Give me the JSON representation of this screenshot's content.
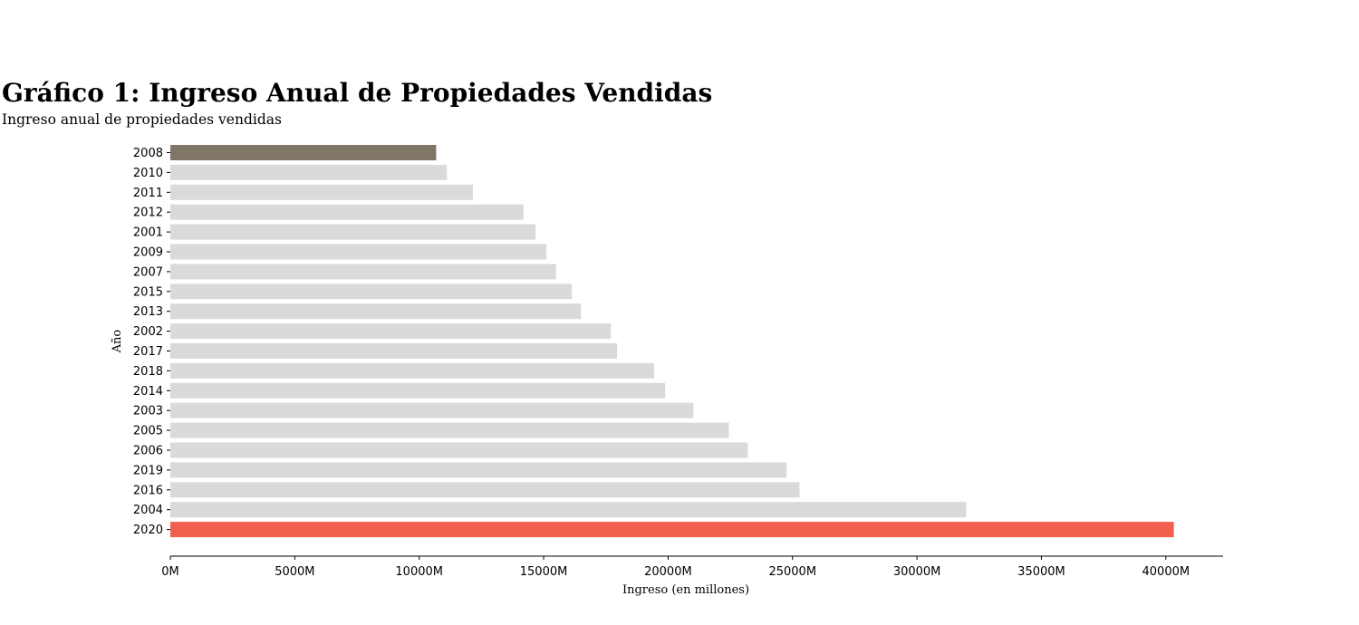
{
  "title": "Gráfico 1: Ingreso Anual de Propiedades Vendidas",
  "subtitle": "Ingreso anual de propiedades vendidas",
  "chart_data": {
    "type": "bar",
    "orientation": "horizontal",
    "xlabel": "Ingreso (en millones)",
    "ylabel": "Año",
    "xlim": [
      0,
      42300
    ],
    "xticks": [
      0,
      5000,
      10000,
      15000,
      20000,
      25000,
      30000,
      35000,
      40000
    ],
    "xtick_labels": [
      "0M",
      "5000M",
      "10000M",
      "15000M",
      "20000M",
      "25000M",
      "30000M",
      "35000M",
      "40000M"
    ],
    "categories": [
      "2008",
      "2010",
      "2011",
      "2012",
      "2001",
      "2009",
      "2007",
      "2015",
      "2013",
      "2002",
      "2017",
      "2018",
      "2014",
      "2003",
      "2005",
      "2006",
      "2019",
      "2016",
      "2004",
      "2020"
    ],
    "values": [
      10680,
      11110,
      12160,
      14190,
      14670,
      15110,
      15500,
      16130,
      16500,
      17700,
      17950,
      19440,
      19880,
      21020,
      22440,
      23200,
      24760,
      25280,
      31980,
      40320
    ],
    "colors": [
      "#7f7668",
      "#dadada",
      "#dadada",
      "#dadada",
      "#dadada",
      "#dadada",
      "#dadada",
      "#dadada",
      "#dadada",
      "#dadada",
      "#dadada",
      "#dadada",
      "#dadada",
      "#dadada",
      "#dadada",
      "#dadada",
      "#dadada",
      "#dadada",
      "#dadada",
      "#f25f4f"
    ],
    "grid": false
  }
}
